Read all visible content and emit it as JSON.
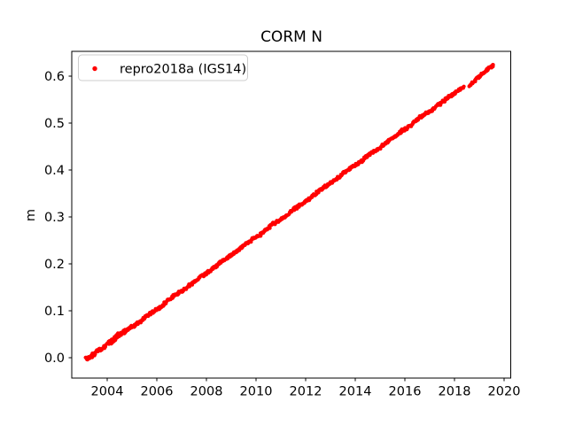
{
  "window": {
    "background": "#ffffff"
  },
  "chart_data": {
    "type": "scatter",
    "title": "CORM N",
    "xlabel": "",
    "ylabel": "m",
    "xlim": [
      2002.55,
      2020.3
    ],
    "ylim": [
      -0.044,
      0.653
    ],
    "xticks": [
      2004,
      2006,
      2008,
      2010,
      2012,
      2014,
      2016,
      2018,
      2020
    ],
    "yticks": [
      0.0,
      0.1,
      0.2,
      0.3,
      0.4,
      0.5,
      0.6
    ],
    "grid": false,
    "colors": {
      "spine": "#000000",
      "text": "#000000",
      "legend_border": "#cccccc",
      "legend_background": "#ffffff"
    },
    "legend": {
      "position": "upper left",
      "entries": [
        {
          "label": "repro2018a (IGS14)",
          "marker": "dot",
          "color": "#ff0000"
        }
      ]
    },
    "series": [
      {
        "name": "repro2018a (IGS14)",
        "color": "#ff0000",
        "marker": "dot",
        "description": "dense daily GPS north-position time series, near-linear trend",
        "trend_rate_m_per_yr": 0.0383,
        "gaps": [
          [
            2018.37,
            2018.56
          ]
        ],
        "points": [
          [
            2003.15,
            -0.004
          ],
          [
            2003.4,
            0.005
          ],
          [
            2003.65,
            0.016
          ],
          [
            2003.9,
            0.024
          ],
          [
            2004.15,
            0.034
          ],
          [
            2004.4,
            0.047
          ],
          [
            2004.65,
            0.055
          ],
          [
            2004.9,
            0.062
          ],
          [
            2005.15,
            0.071
          ],
          [
            2005.4,
            0.081
          ],
          [
            2005.65,
            0.092
          ],
          [
            2005.9,
            0.1
          ],
          [
            2006.15,
            0.109
          ],
          [
            2006.4,
            0.12
          ],
          [
            2006.65,
            0.131
          ],
          [
            2006.9,
            0.139
          ],
          [
            2007.15,
            0.147
          ],
          [
            2007.4,
            0.158
          ],
          [
            2007.65,
            0.169
          ],
          [
            2007.9,
            0.177
          ],
          [
            2008.15,
            0.186
          ],
          [
            2008.4,
            0.196
          ],
          [
            2008.65,
            0.207
          ],
          [
            2008.9,
            0.215
          ],
          [
            2009.15,
            0.224
          ],
          [
            2009.4,
            0.235
          ],
          [
            2009.65,
            0.245
          ],
          [
            2009.9,
            0.254
          ],
          [
            2010.15,
            0.262
          ],
          [
            2010.4,
            0.273
          ],
          [
            2010.65,
            0.284
          ],
          [
            2010.9,
            0.292
          ],
          [
            2011.15,
            0.301
          ],
          [
            2011.4,
            0.311
          ],
          [
            2011.65,
            0.322
          ],
          [
            2011.9,
            0.33
          ],
          [
            2012.15,
            0.339
          ],
          [
            2012.4,
            0.35
          ],
          [
            2012.65,
            0.36
          ],
          [
            2012.9,
            0.369
          ],
          [
            2013.15,
            0.378
          ],
          [
            2013.4,
            0.388
          ],
          [
            2013.65,
            0.399
          ],
          [
            2013.9,
            0.407
          ],
          [
            2014.15,
            0.416
          ],
          [
            2014.4,
            0.426
          ],
          [
            2014.65,
            0.437
          ],
          [
            2014.9,
            0.445
          ],
          [
            2015.15,
            0.454
          ],
          [
            2015.4,
            0.465
          ],
          [
            2015.65,
            0.475
          ],
          [
            2015.9,
            0.484
          ],
          [
            2016.15,
            0.492
          ],
          [
            2016.4,
            0.503
          ],
          [
            2016.65,
            0.514
          ],
          [
            2016.9,
            0.522
          ],
          [
            2017.15,
            0.531
          ],
          [
            2017.4,
            0.541
          ],
          [
            2017.65,
            0.552
          ],
          [
            2017.9,
            0.56
          ],
          [
            2018.15,
            0.57
          ],
          [
            2018.35,
            0.577
          ],
          [
            2018.58,
            0.578
          ],
          [
            2018.8,
            0.59
          ],
          [
            2019.0,
            0.6
          ],
          [
            2019.25,
            0.612
          ],
          [
            2019.55,
            0.624
          ]
        ]
      }
    ]
  }
}
